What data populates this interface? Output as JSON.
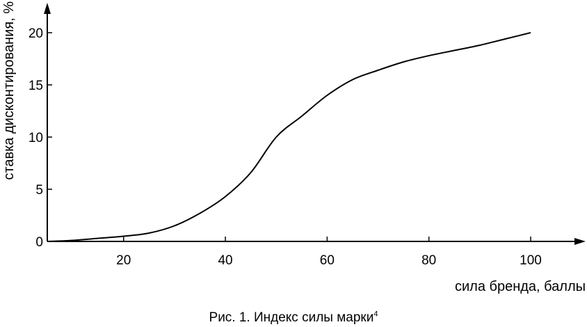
{
  "chart_data": {
    "type": "line",
    "title": "",
    "xlabel": "сила бренда, баллы",
    "ylabel": "ставка дисконтирования, %",
    "xlim": [
      5,
      112
    ],
    "ylim": [
      0,
      22.5
    ],
    "xticks": [
      20,
      40,
      60,
      80,
      100
    ],
    "yticks": [
      0,
      5,
      10,
      15,
      20
    ],
    "grid": false,
    "legend": "none",
    "series": [
      {
        "x": [
          5,
          10,
          15,
          20,
          25,
          30,
          35,
          40,
          45,
          50,
          55,
          60,
          65,
          70,
          75,
          80,
          85,
          90,
          95,
          100
        ],
        "y": [
          0.0,
          0.1,
          0.3,
          0.5,
          0.8,
          1.5,
          2.7,
          4.3,
          6.6,
          10.0,
          12.0,
          14.0,
          15.5,
          16.4,
          17.2,
          17.8,
          18.3,
          18.8,
          19.4,
          20.0
        ]
      }
    ]
  },
  "caption": {
    "text": "Рис. 1. Индекс силы марки",
    "footnote": "4"
  },
  "colors": {
    "line": "#000000",
    "background": "#ffffff"
  }
}
